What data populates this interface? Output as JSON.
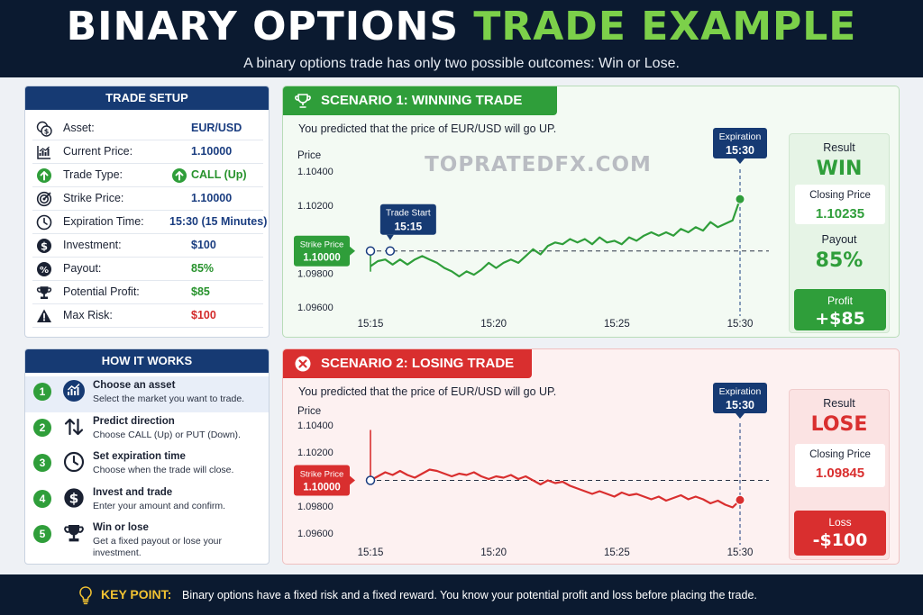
{
  "header": {
    "title_part1": "BINARY OPTIONS",
    "title_part2": "TRADE EXAMPLE",
    "subtitle": "A binary options trade has only two possible outcomes: Win or Lose."
  },
  "colors": {
    "navy": "#0b1a30",
    "blue_header": "#163a73",
    "green": "#2f9e3a",
    "red": "#d92f2f",
    "yellow": "#f1c232"
  },
  "trade_setup": {
    "title": "TRADE SETUP",
    "rows": [
      {
        "icon": "currency-exchange-icon",
        "label": "Asset:",
        "value": "EUR/USD"
      },
      {
        "icon": "chart-icon",
        "label": "Current Price:",
        "value": "1.10000"
      },
      {
        "icon": "arrow-up-circle-icon",
        "label": "Trade Type:",
        "value": "CALL (Up)"
      },
      {
        "icon": "target-icon",
        "label": "Strike Price:",
        "value": "1.10000"
      },
      {
        "icon": "clock-icon",
        "label": "Expiration Time:",
        "value": "15:30 (15 Minutes)"
      },
      {
        "icon": "dollar-icon",
        "label": "Investment:",
        "value": "$100"
      },
      {
        "icon": "percent-icon",
        "label": "Payout:",
        "value": "85%"
      },
      {
        "icon": "trophy-icon",
        "label": "Potential Profit:",
        "value": "$85"
      },
      {
        "icon": "warning-icon",
        "label": "Max Risk:",
        "value": "$100"
      }
    ]
  },
  "how_it_works": {
    "title": "HOW IT WORKS",
    "steps": [
      {
        "num": "1",
        "icon": "chart-circle-icon",
        "title": "Choose an asset",
        "desc": "Select the market you want to trade."
      },
      {
        "num": "2",
        "icon": "up-down-arrows-icon",
        "title": "Predict direction",
        "desc": "Choose CALL (Up) or PUT (Down)."
      },
      {
        "num": "3",
        "icon": "clock-icon",
        "title": "Set expiration time",
        "desc": "Choose when the trade will close."
      },
      {
        "num": "4",
        "icon": "dollar-icon",
        "title": "Invest and trade",
        "desc": "Enter your amount and confirm."
      },
      {
        "num": "5",
        "icon": "trophy-icon",
        "title": "Win or lose",
        "desc": "Get a fixed payout or lose your investment."
      }
    ]
  },
  "scenario1": {
    "tab": "SCENARIO 1: WINNING TRADE",
    "prediction": "You predicted that the price of EUR/USD will go UP.",
    "watermark": "TOPRATEDFX.COM",
    "result_label": "Result",
    "result": "WIN",
    "closing_label": "Closing Price",
    "closing_price": "1.10235",
    "payout_label": "Payout",
    "payout": "85%",
    "money_label": "Profit",
    "money": "+$85"
  },
  "scenario2": {
    "tab": "SCENARIO 2: LOSING TRADE",
    "prediction": "You predicted that the price of EUR/USD will go UP.",
    "result_label": "Result",
    "result": "LOSE",
    "closing_label": "Closing Price",
    "closing_price": "1.09845",
    "money_label": "Loss",
    "money": "-$100"
  },
  "footer": {
    "key_label": "KEY POINT:",
    "key_text": "Binary options have a fixed risk and a fixed reward. You know your potential profit and loss before placing the trade."
  },
  "chart_data": [
    {
      "type": "line",
      "ylabel": "Price",
      "x_ticks": [
        "15:15",
        "15:20",
        "15:25",
        "15:30"
      ],
      "y_ticks": [
        "1.10400",
        "1.10200",
        "1.10000",
        "1.09800",
        "1.09600"
      ],
      "ylim": [
        1.096,
        1.104
      ],
      "xlim": [
        0,
        15
      ],
      "grid": false,
      "strike": {
        "label": "Strike Price",
        "value": "1.10000",
        "y": 1.0993
      },
      "trade_start": {
        "label": "Trade Start",
        "time": "15:15",
        "x": 0.8
      },
      "expiration": {
        "label": "Expiration",
        "time": "15:30",
        "x": 15
      },
      "series": [
        {
          "color": "#2f9e3a",
          "x": [
            0,
            0.3,
            0.6,
            0.9,
            1.2,
            1.5,
            1.8,
            2.1,
            2.4,
            2.7,
            3.0,
            3.3,
            3.6,
            3.9,
            4.2,
            4.5,
            4.8,
            5.1,
            5.4,
            5.7,
            6.0,
            6.3,
            6.6,
            6.9,
            7.2,
            7.5,
            7.8,
            8.1,
            8.4,
            8.7,
            9.0,
            9.3,
            9.6,
            9.9,
            10.2,
            10.5,
            10.8,
            11.1,
            11.4,
            11.7,
            12.0,
            12.3,
            12.6,
            12.9,
            13.2,
            13.5,
            13.8,
            14.1,
            14.4,
            14.7,
            15.0
          ],
          "y": [
            1.0984,
            1.0987,
            1.0988,
            1.0985,
            1.0988,
            1.0985,
            1.0988,
            1.099,
            1.0988,
            1.0986,
            1.0983,
            1.0981,
            1.0978,
            1.0981,
            1.0979,
            1.0982,
            1.0986,
            1.0983,
            1.0986,
            1.0988,
            1.0986,
            1.099,
            1.0994,
            1.0991,
            1.0996,
            1.0998,
            1.0997,
            1.1,
            1.0998,
            1.1,
            1.0997,
            1.1001,
            1.0998,
            1.0999,
            1.0997,
            1.1001,
            1.0999,
            1.1002,
            1.1004,
            1.1002,
            1.1004,
            1.1002,
            1.1006,
            1.1004,
            1.1007,
            1.1005,
            1.101,
            1.1007,
            1.1009,
            1.1011,
            1.10235
          ]
        }
      ]
    },
    {
      "type": "line",
      "ylabel": "Price",
      "x_ticks": [
        "15:15",
        "15:20",
        "15:25",
        "15:30"
      ],
      "y_ticks": [
        "1.10400",
        "1.10200",
        "1.10000",
        "1.09800",
        "1.09600"
      ],
      "ylim": [
        1.096,
        1.104
      ],
      "xlim": [
        0,
        15
      ],
      "grid": false,
      "strike": {
        "label": "Strike Price",
        "value": "1.10000",
        "y": 1.0999
      },
      "expiration": {
        "label": "Expiration",
        "time": "15:30",
        "x": 15
      },
      "series": [
        {
          "color": "#d92f2f",
          "x": [
            0,
            0.3,
            0.6,
            0.9,
            1.2,
            1.5,
            1.8,
            2.1,
            2.4,
            2.7,
            3.0,
            3.3,
            3.6,
            3.9,
            4.2,
            4.5,
            4.8,
            5.1,
            5.4,
            5.7,
            6.0,
            6.3,
            6.6,
            6.9,
            7.2,
            7.5,
            7.8,
            8.1,
            8.4,
            8.7,
            9.0,
            9.3,
            9.6,
            9.9,
            10.2,
            10.5,
            10.8,
            11.1,
            11.4,
            11.7,
            12.0,
            12.3,
            12.6,
            12.9,
            13.2,
            13.5,
            13.8,
            14.1,
            14.4,
            14.7,
            15.0
          ],
          "y": [
            1.0999,
            1.1002,
            1.1005,
            1.1003,
            1.1006,
            1.1003,
            1.1001,
            1.1004,
            1.1007,
            1.1006,
            1.1004,
            1.1002,
            1.1004,
            1.1003,
            1.1005,
            1.1002,
            1.1,
            1.1002,
            1.1001,
            1.1003,
            1.1,
            1.1002,
            1.0999,
            1.0996,
            1.0999,
            1.0997,
            1.0998,
            1.0995,
            1.0993,
            1.0991,
            1.0989,
            1.0991,
            1.0989,
            1.0987,
            1.099,
            1.0988,
            1.0989,
            1.0987,
            1.0985,
            1.0987,
            1.0984,
            1.0986,
            1.0988,
            1.0985,
            1.0987,
            1.0985,
            1.0982,
            1.0984,
            1.0981,
            1.0979,
            1.09845
          ]
        }
      ]
    }
  ]
}
